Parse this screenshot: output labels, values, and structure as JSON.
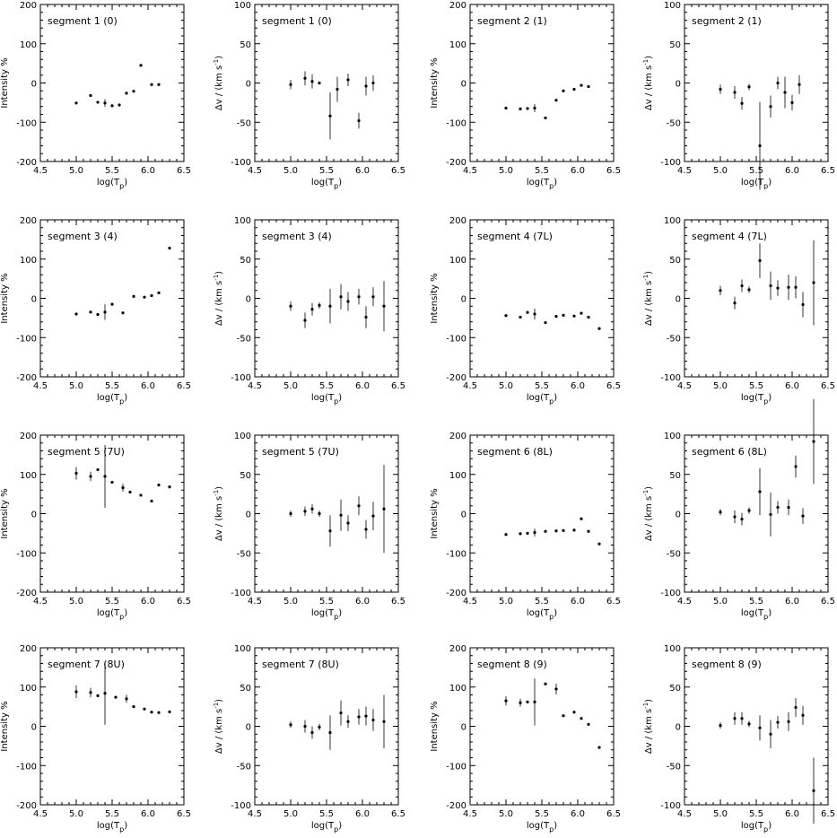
{
  "chart_data": [
    {
      "type": "scatter",
      "title": "segment 1 (0)",
      "quantity": "intensity",
      "xlim": [
        4.5,
        6.5
      ],
      "ylim": [
        -200,
        200
      ],
      "x": [
        5.0,
        5.2,
        5.3,
        5.4,
        5.5,
        5.6,
        5.7,
        5.8,
        5.9,
        6.05,
        6.15
      ],
      "y": [
        -51,
        -32,
        -49,
        -51,
        -58,
        -56,
        -26,
        -21,
        45,
        -4,
        -4
      ],
      "err": [
        0,
        0,
        0,
        10,
        0,
        0,
        0,
        0,
        0,
        0,
        0
      ]
    },
    {
      "type": "scatter",
      "title": "segment 1 (0)",
      "quantity": "velocity",
      "xlim": [
        4.5,
        6.5
      ],
      "ylim": [
        -100,
        100
      ],
      "x": [
        5.0,
        5.2,
        5.3,
        5.4,
        5.55,
        5.65,
        5.8,
        5.95,
        6.05,
        6.15
      ],
      "y": [
        -2,
        6,
        2,
        0,
        -42,
        -8,
        4,
        -48,
        -4,
        0
      ],
      "err": [
        6,
        9,
        9,
        0,
        30,
        16,
        8,
        10,
        12,
        10
      ]
    },
    {
      "type": "scatter",
      "title": "segment 2 (1)",
      "quantity": "intensity",
      "xlim": [
        4.5,
        6.5
      ],
      "ylim": [
        -200,
        200
      ],
      "x": [
        5.0,
        5.2,
        5.3,
        5.4,
        5.55,
        5.7,
        5.8,
        5.95,
        6.05,
        6.15
      ],
      "y": [
        -64,
        -66,
        -65,
        -64,
        -89,
        -44,
        -20,
        -16,
        -6,
        -9
      ],
      "err": [
        0,
        0,
        0,
        10,
        0,
        0,
        0,
        0,
        0,
        0
      ]
    },
    {
      "type": "scatter",
      "title": "segment 2 (1)",
      "quantity": "velocity",
      "xlim": [
        4.5,
        6.5
      ],
      "ylim": [
        -100,
        100
      ],
      "x": [
        5.0,
        5.2,
        5.3,
        5.4,
        5.55,
        5.7,
        5.8,
        5.9,
        6.0,
        6.1
      ],
      "y": [
        -8,
        -12,
        -26,
        -5,
        -80,
        -30,
        0,
        -12,
        -25,
        -2
      ],
      "err": [
        6,
        8,
        8,
        4,
        56,
        14,
        8,
        20,
        10,
        12
      ]
    },
    {
      "type": "scatter",
      "title": "segment 3 (4)",
      "quantity": "intensity",
      "xlim": [
        4.5,
        6.5
      ],
      "ylim": [
        -200,
        200
      ],
      "x": [
        5.0,
        5.2,
        5.3,
        5.4,
        5.5,
        5.65,
        5.8,
        5.95,
        6.05,
        6.15,
        6.3
      ],
      "y": [
        -40,
        -35,
        -41,
        -35,
        -15,
        -37,
        5,
        3,
        7,
        14,
        128
      ],
      "err": [
        0,
        0,
        0,
        20,
        0,
        0,
        0,
        0,
        0,
        0,
        0
      ]
    },
    {
      "type": "scatter",
      "title": "segment 3 (4)",
      "quantity": "velocity",
      "xlim": [
        4.5,
        6.5
      ],
      "ylim": [
        -100,
        100
      ],
      "x": [
        5.0,
        5.2,
        5.3,
        5.4,
        5.55,
        5.7,
        5.8,
        5.95,
        6.05,
        6.15,
        6.3
      ],
      "y": [
        -10,
        -28,
        -14,
        -9,
        -10,
        2,
        -4,
        2,
        -24,
        2,
        -10
      ],
      "err": [
        6,
        10,
        8,
        4,
        22,
        16,
        12,
        10,
        14,
        12,
        32
      ]
    },
    {
      "type": "scatter",
      "title": "segment 4 (7L)",
      "quantity": "intensity",
      "xlim": [
        4.5,
        6.5
      ],
      "ylim": [
        -200,
        200
      ],
      "x": [
        5.0,
        5.2,
        5.3,
        5.4,
        5.55,
        5.7,
        5.8,
        5.95,
        6.05,
        6.15,
        6.3
      ],
      "y": [
        -44,
        -48,
        -36,
        -40,
        -62,
        -46,
        -43,
        -45,
        -38,
        -48,
        -77
      ],
      "err": [
        0,
        0,
        0,
        14,
        0,
        0,
        0,
        0,
        0,
        0,
        0
      ]
    },
    {
      "type": "scatter",
      "title": "segment 4 (7L)",
      "quantity": "velocity",
      "xlim": [
        4.5,
        6.5
      ],
      "ylim": [
        -100,
        100
      ],
      "x": [
        5.0,
        5.2,
        5.3,
        5.4,
        5.55,
        5.7,
        5.8,
        5.95,
        6.05,
        6.15,
        6.3
      ],
      "y": [
        10,
        -6,
        16,
        11,
        48,
        16,
        13,
        14,
        14,
        -8,
        20
      ],
      "err": [
        6,
        8,
        8,
        4,
        22,
        18,
        10,
        16,
        14,
        16,
        54
      ]
    },
    {
      "type": "scatter",
      "title": "segment 5 (7U)",
      "quantity": "intensity",
      "xlim": [
        4.5,
        6.5
      ],
      "ylim": [
        -200,
        200
      ],
      "x": [
        5.0,
        5.2,
        5.3,
        5.4,
        5.5,
        5.65,
        5.75,
        5.9,
        6.05,
        6.15,
        6.3
      ],
      "y": [
        103,
        95,
        112,
        95,
        80,
        66,
        55,
        47,
        32,
        73,
        68
      ],
      "err": [
        16,
        12,
        0,
        80,
        0,
        10,
        0,
        0,
        0,
        0,
        0
      ]
    },
    {
      "type": "scatter",
      "title": "segment 5 (7U)",
      "quantity": "velocity",
      "xlim": [
        4.5,
        6.5
      ],
      "ylim": [
        -100,
        100
      ],
      "x": [
        5.0,
        5.2,
        5.3,
        5.4,
        5.55,
        5.7,
        5.8,
        5.95,
        6.05,
        6.15,
        6.3
      ],
      "y": [
        0,
        3,
        6,
        0,
        -22,
        -2,
        -12,
        10,
        -20,
        -3,
        6
      ],
      "err": [
        4,
        6,
        6,
        4,
        20,
        20,
        10,
        12,
        12,
        18,
        56
      ]
    },
    {
      "type": "scatter",
      "title": "segment 6 (8L)",
      "quantity": "intensity",
      "xlim": [
        4.5,
        6.5
      ],
      "ylim": [
        -200,
        200
      ],
      "x": [
        5.0,
        5.2,
        5.3,
        5.4,
        5.55,
        5.7,
        5.8,
        5.95,
        6.05,
        6.15,
        6.3
      ],
      "y": [
        -53,
        -51,
        -50,
        -48,
        -45,
        -44,
        -43,
        -42,
        -13,
        -45,
        -77
      ],
      "err": [
        0,
        0,
        0,
        10,
        0,
        0,
        0,
        0,
        0,
        0,
        0
      ]
    },
    {
      "type": "scatter",
      "title": "segment 6 (8L)",
      "quantity": "velocity",
      "xlim": [
        4.5,
        6.5
      ],
      "ylim": [
        -100,
        100
      ],
      "x": [
        5.0,
        5.2,
        5.3,
        5.4,
        5.55,
        5.7,
        5.8,
        5.95,
        6.05,
        6.15,
        6.3
      ],
      "y": [
        2,
        -4,
        -7,
        4,
        28,
        -1,
        8,
        8,
        60,
        -3,
        92
      ],
      "err": [
        4,
        8,
        8,
        4,
        30,
        28,
        8,
        10,
        14,
        10,
        54
      ]
    },
    {
      "type": "scatter",
      "title": "segment 7 (8U)",
      "quantity": "intensity",
      "xlim": [
        4.5,
        6.5
      ],
      "ylim": [
        -200,
        200
      ],
      "x": [
        5.0,
        5.2,
        5.3,
        5.4,
        5.55,
        5.7,
        5.8,
        5.95,
        6.05,
        6.15,
        6.3
      ],
      "y": [
        88,
        86,
        78,
        84,
        74,
        70,
        50,
        44,
        36,
        35,
        37
      ],
      "err": [
        16,
        12,
        0,
        80,
        0,
        10,
        0,
        0,
        0,
        0,
        0
      ]
    },
    {
      "type": "scatter",
      "title": "segment 7 (8U)",
      "quantity": "velocity",
      "xlim": [
        4.5,
        6.5
      ],
      "ylim": [
        -100,
        100
      ],
      "x": [
        5.0,
        5.2,
        5.3,
        5.4,
        5.55,
        5.7,
        5.8,
        5.95,
        6.05,
        6.15,
        6.3
      ],
      "y": [
        2,
        0,
        -8,
        -1,
        -8,
        17,
        6,
        12,
        13,
        8,
        6
      ],
      "err": [
        4,
        8,
        8,
        4,
        22,
        16,
        8,
        10,
        12,
        14,
        34
      ]
    },
    {
      "type": "scatter",
      "title": "segment 8 (9)",
      "quantity": "intensity",
      "xlim": [
        4.5,
        6.5
      ],
      "ylim": [
        -200,
        200
      ],
      "x": [
        5.0,
        5.2,
        5.3,
        5.4,
        5.55,
        5.7,
        5.8,
        5.95,
        6.05,
        6.15,
        6.3
      ],
      "y": [
        65,
        60,
        62,
        62,
        108,
        95,
        27,
        36,
        20,
        5,
        -54
      ],
      "err": [
        12,
        10,
        0,
        60,
        0,
        14,
        0,
        0,
        0,
        0,
        0
      ]
    },
    {
      "type": "scatter",
      "title": "segment 8 (9)",
      "quantity": "velocity",
      "xlim": [
        4.5,
        6.5
      ],
      "ylim": [
        -100,
        100
      ],
      "x": [
        5.0,
        5.2,
        5.3,
        5.4,
        5.55,
        5.7,
        5.8,
        5.95,
        6.05,
        6.15,
        6.3
      ],
      "y": [
        1,
        10,
        10,
        3,
        -2,
        -10,
        5,
        6,
        24,
        14,
        -82
      ],
      "err": [
        4,
        8,
        8,
        4,
        16,
        18,
        8,
        12,
        12,
        12,
        42
      ]
    }
  ],
  "axes": {
    "xlabel": "log(T",
    "xlabel_sub": "p",
    "xlabel_close": ")",
    "xticks": [
      "4.5",
      "5.0",
      "5.5",
      "6.0",
      "6.5"
    ],
    "intensity_ylabel": "Intensity %",
    "intensity_yticks": [
      "-200",
      "-100",
      "0",
      "100",
      "200"
    ],
    "velocity_ylabel": "Δv / (km s",
    "velocity_ylabel_sup": "-1",
    "velocity_ylabel_close": ")",
    "velocity_yticks": [
      "-100",
      "-50",
      "0",
      "50",
      "100"
    ]
  },
  "colors": {
    "axes": "#000000",
    "points": "#000000",
    "background": "#ffffff"
  }
}
